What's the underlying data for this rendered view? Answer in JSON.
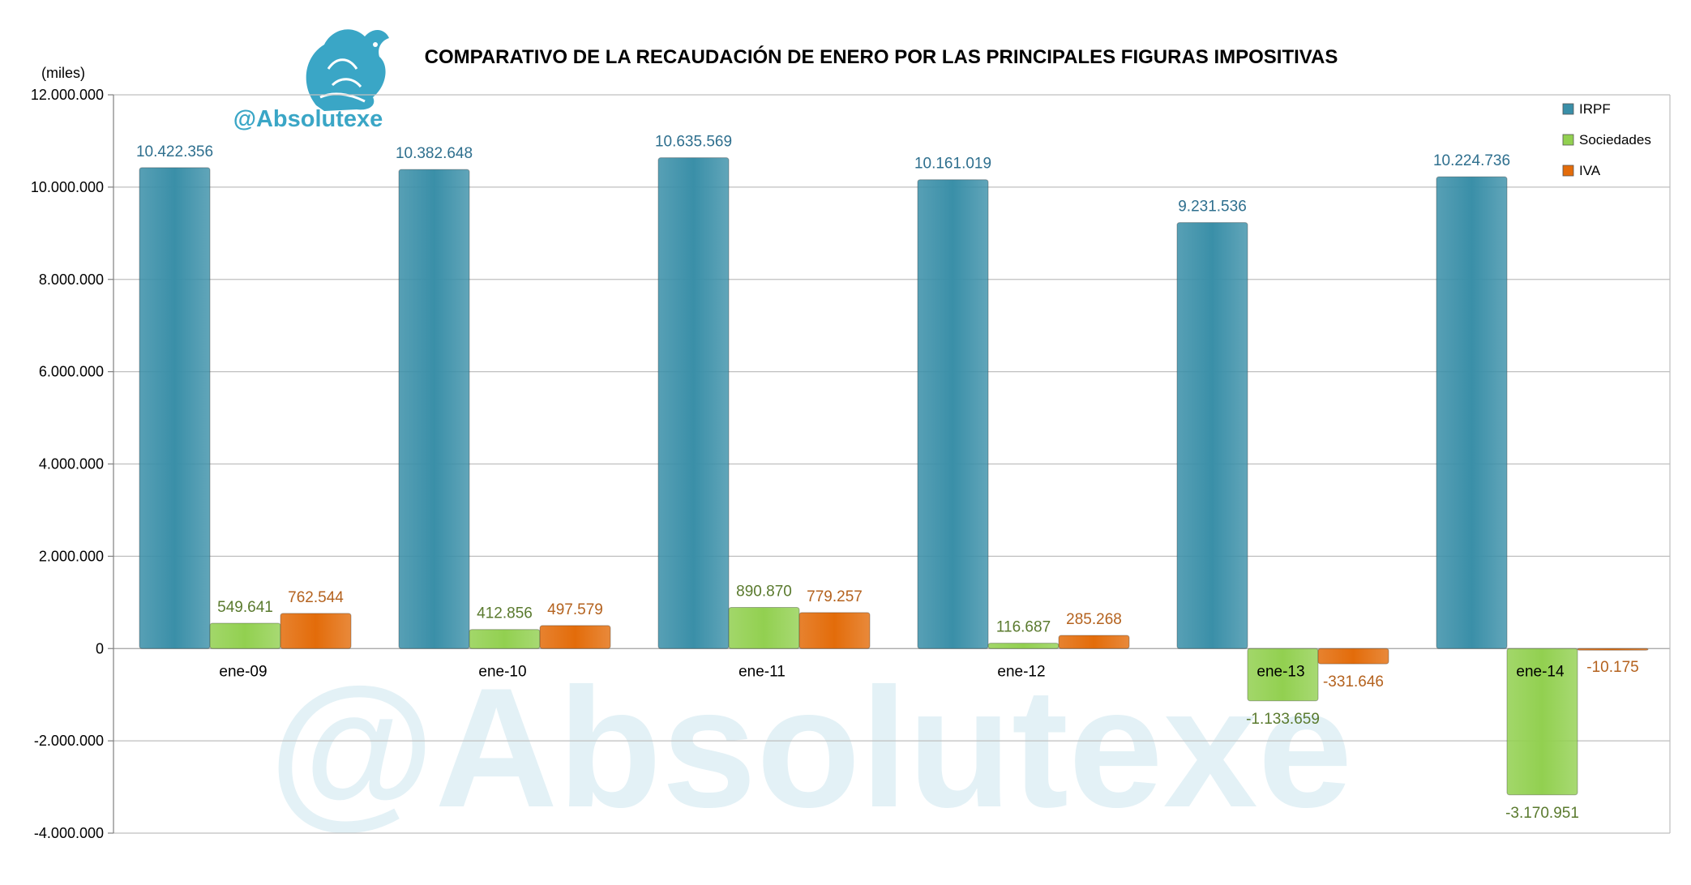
{
  "chart_data": {
    "type": "bar",
    "title": "COMPARATIVO DE LA RECAUDACIÓN DE ENERO POR LAS PRINCIPALES FIGURAS IMPOSITIVAS",
    "ylabel": "(miles)",
    "xlabel": "",
    "categories": [
      "ene-09",
      "ene-10",
      "ene-11",
      "ene-12",
      "ene-13",
      "ene-14"
    ],
    "series": [
      {
        "name": "IRPF",
        "color": "#3a8fa8",
        "values": [
          10422356,
          10382648,
          10635569,
          10161019,
          9231536,
          10224736
        ],
        "labels": [
          "10.422.356",
          "10.382.648",
          "10.635.569",
          "10.161.019",
          "9.231.536",
          "10.224.736"
        ],
        "label_color": "#2e6f8e"
      },
      {
        "name": "Sociedades",
        "color": "#92d050",
        "values": [
          549641,
          412856,
          890870,
          116687,
          -1133659,
          -3170951
        ],
        "labels": [
          "549.641",
          "412.856",
          "890.870",
          "116.687",
          "-1.133.659",
          "-3.170.951"
        ],
        "label_color": "#5a7a2e"
      },
      {
        "name": "IVA",
        "color": "#e36c0a",
        "values": [
          762544,
          497579,
          779257,
          285268,
          -331646,
          -10175
        ],
        "labels": [
          "762.544",
          "497.579",
          "779.257",
          "285.268",
          "-331.646",
          "-10.175"
        ],
        "label_color": "#b4621e"
      }
    ],
    "ylim": [
      -4000000,
      12000000
    ],
    "yticks": [
      12000000,
      10000000,
      8000000,
      6000000,
      4000000,
      2000000,
      0,
      -2000000,
      -4000000
    ],
    "ytick_labels": [
      "12.000.000",
      "10.000.000",
      "8.000.000",
      "6.000.000",
      "4.000.000",
      "2.000.000",
      "0",
      "-2.000.000",
      "-4.000.000"
    ],
    "grid": true,
    "legend_position": "top-right"
  },
  "branding": {
    "handle": "@Absolutexe",
    "watermark": "@Absolutexe",
    "logo_icon": "griffin-icon"
  }
}
